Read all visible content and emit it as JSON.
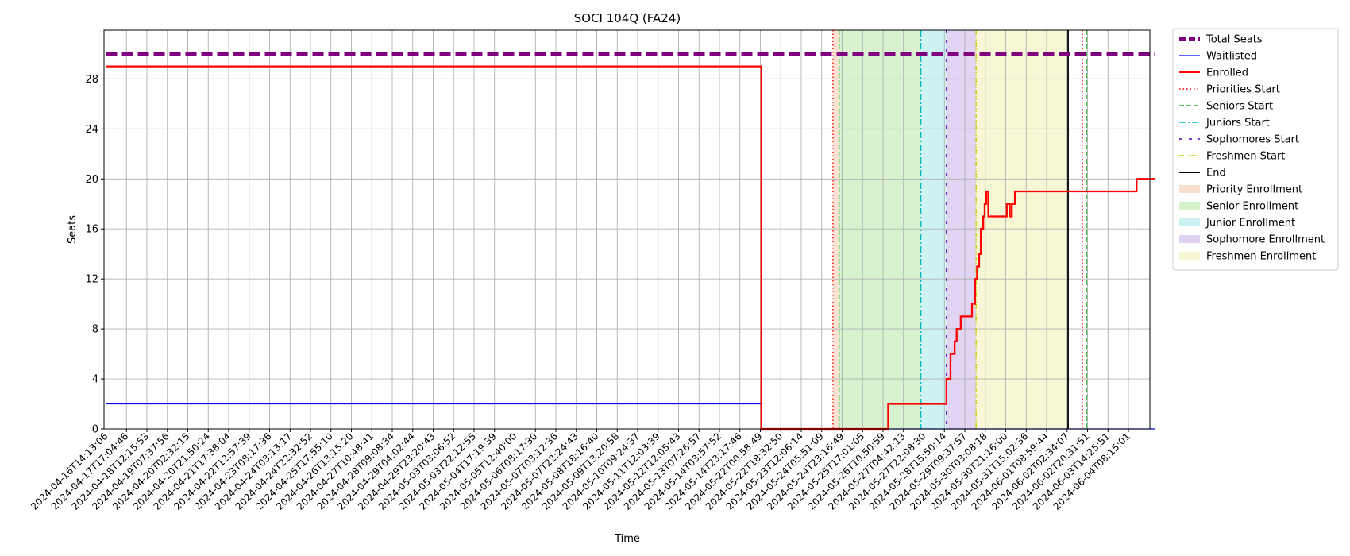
{
  "chart_data": {
    "type": "line",
    "title": "SOCI 104Q (FA24)",
    "xlabel": "Time",
    "ylabel": "Seats",
    "ylim": [
      0,
      30
    ],
    "yticks": [
      0,
      4,
      8,
      12,
      16,
      20,
      24,
      28
    ],
    "grid": true,
    "legend_placement": "outside-right-top",
    "x_tick_labels": [
      "2024-04-16T14:13:06",
      "2024-04-17T17:04:46",
      "2024-04-18T12:15:53",
      "2024-04-19T07:37:56",
      "2024-04-20T02:32:15",
      "2024-04-20T21:50:24",
      "2024-04-21T17:38:04",
      "2024-04-22T12:57:39",
      "2024-04-23T08:17:36",
      "2024-04-24T03:13:17",
      "2024-04-24T22:32:52",
      "2024-04-25T17:55:10",
      "2024-04-26T13:15:20",
      "2024-04-27T10:48:41",
      "2024-04-28T09:08:34",
      "2024-04-29T04:02:44",
      "2024-04-29T23:20:43",
      "2024-05-03T03:06:52",
      "2024-05-03T22:12:55",
      "2024-05-04T17:19:39",
      "2024-05-05T12:40:00",
      "2024-05-06T08:17:30",
      "2024-05-07T03:12:36",
      "2024-05-07T22:24:43",
      "2024-05-08T18:16:40",
      "2024-05-09T13:20:58",
      "2024-05-10T09:24:37",
      "2024-05-11T12:03:39",
      "2024-05-12T12:05:43",
      "2024-05-13T07:26:57",
      "2024-05-14T03:57:52",
      "2024-05-14T23:17:46",
      "2024-05-22T00:58:49",
      "2024-05-22T18:32:50",
      "2024-05-23T12:06:14",
      "2024-05-24T05:51:09",
      "2024-05-24T23:16:49",
      "2024-05-25T17:01:05",
      "2024-05-26T10:50:59",
      "2024-05-27T04:42:13",
      "2024-05-27T22:08:30",
      "2024-05-28T15:50:14",
      "2024-05-29T09:37:57",
      "2024-05-30T03:08:18",
      "2024-05-30T21:16:00",
      "2024-05-31T15:02:36",
      "2024-06-01T08:59:44",
      "2024-06-02T02:34:07",
      "2024-06-02T20:31:51",
      "2024-06-03T14:25:51",
      "2024-06-04T08:15:01"
    ],
    "x_range_index": [
      0,
      51.3
    ],
    "total_seats": 30,
    "series": [
      {
        "name": "Total Seats",
        "color": "#800080",
        "points": [
          [
            0,
            30
          ],
          [
            51.3,
            30
          ]
        ]
      },
      {
        "name": "Waitlisted",
        "color": "#0000ff",
        "points": [
          [
            0,
            2
          ],
          [
            32.05,
            2
          ],
          [
            32.05,
            0
          ],
          [
            51.3,
            0
          ]
        ]
      },
      {
        "name": "Enrolled",
        "color": "#ff0000",
        "points": [
          [
            0,
            29
          ],
          [
            32.05,
            29
          ],
          [
            32.05,
            0
          ],
          [
            38.25,
            0
          ],
          [
            38.25,
            2
          ],
          [
            41.1,
            2
          ],
          [
            41.1,
            4
          ],
          [
            41.3,
            4
          ],
          [
            41.3,
            6
          ],
          [
            41.5,
            6
          ],
          [
            41.5,
            7
          ],
          [
            41.6,
            7
          ],
          [
            41.6,
            8
          ],
          [
            41.8,
            8
          ],
          [
            41.8,
            9
          ],
          [
            42.35,
            9
          ],
          [
            42.35,
            10
          ],
          [
            42.5,
            10
          ],
          [
            42.5,
            12
          ],
          [
            42.6,
            12
          ],
          [
            42.6,
            13
          ],
          [
            42.7,
            13
          ],
          [
            42.7,
            14
          ],
          [
            42.78,
            14
          ],
          [
            42.78,
            16
          ],
          [
            42.9,
            16
          ],
          [
            42.9,
            17
          ],
          [
            42.97,
            17
          ],
          [
            42.97,
            18
          ],
          [
            43.05,
            18
          ],
          [
            43.05,
            19
          ],
          [
            43.15,
            19
          ],
          [
            43.15,
            17
          ],
          [
            44.05,
            17
          ],
          [
            44.05,
            18
          ],
          [
            44.2,
            18
          ],
          [
            44.2,
            17
          ],
          [
            44.3,
            17
          ],
          [
            44.3,
            18
          ],
          [
            44.45,
            18
          ],
          [
            44.45,
            19
          ],
          [
            50.4,
            19
          ],
          [
            50.4,
            20
          ],
          [
            51.3,
            20
          ]
        ]
      }
    ],
    "phase_lines": [
      {
        "name": "Priorities Start",
        "color": "#ff0000",
        "style": "dotted",
        "x": [
          35.55,
          47.75
        ]
      },
      {
        "name": "Seniors Start",
        "color": "#22bb22",
        "style": "dashed",
        "x": [
          35.85,
          47.95
        ]
      },
      {
        "name": "Juniors Start",
        "color": "#00bbbb",
        "style": "dashdot",
        "x": [
          39.85
        ]
      },
      {
        "name": "Sophomores Start",
        "color": "#5500bb",
        "style": "loosedash",
        "x": [
          41.1
        ]
      },
      {
        "name": "Freshmen Start",
        "color": "#cccc00",
        "style": "dashdotdot",
        "x": [
          42.55
        ]
      },
      {
        "name": "End",
        "color": "#000000",
        "style": "solid",
        "x": [
          47.05
        ]
      }
    ],
    "phase_spans": [
      {
        "name": "Priority Enrollment",
        "color": "#f5c9b0",
        "range": [
          35.55,
          35.85
        ]
      },
      {
        "name": "Senior Enrollment",
        "color": "#b8e8a8",
        "range": [
          35.85,
          39.85
        ]
      },
      {
        "name": "Junior Enrollment",
        "color": "#a6e6ea",
        "range": [
          39.85,
          41.1
        ]
      },
      {
        "name": "Sophomore Enrollment",
        "color": "#c9b2ea",
        "range": [
          41.1,
          42.55
        ]
      },
      {
        "name": "Freshmen Enrollment",
        "color": "#f0f0b4",
        "range": [
          42.55,
          47.05
        ]
      }
    ],
    "legend": [
      {
        "label": "Total Seats",
        "kind": "line",
        "color": "#800080",
        "style": "thickdash"
      },
      {
        "label": "Waitlisted",
        "kind": "line",
        "color": "#0000ff",
        "style": "thin"
      },
      {
        "label": "Enrolled",
        "kind": "line",
        "color": "#ff0000",
        "style": "solid"
      },
      {
        "label": "Priorities Start",
        "kind": "line",
        "color": "#ff0000",
        "style": "dotted"
      },
      {
        "label": "Seniors Start",
        "kind": "line",
        "color": "#22bb22",
        "style": "dashed"
      },
      {
        "label": "Juniors Start",
        "kind": "line",
        "color": "#00bbbb",
        "style": "dashdot"
      },
      {
        "label": "Sophomores Start",
        "kind": "line",
        "color": "#5500bb",
        "style": "loosedash"
      },
      {
        "label": "Freshmen Start",
        "kind": "line",
        "color": "#cccc00",
        "style": "dashdotdot"
      },
      {
        "label": "End",
        "kind": "line",
        "color": "#000000",
        "style": "solid"
      },
      {
        "label": "Priority Enrollment",
        "kind": "patch",
        "color": "#f5c9b0"
      },
      {
        "label": "Senior Enrollment",
        "kind": "patch",
        "color": "#b8e8a8"
      },
      {
        "label": "Junior Enrollment",
        "kind": "patch",
        "color": "#a6e6ea"
      },
      {
        "label": "Sophomore Enrollment",
        "kind": "patch",
        "color": "#c9b2ea"
      },
      {
        "label": "Freshmen Enrollment",
        "kind": "patch",
        "color": "#f0f0b4"
      }
    ]
  }
}
